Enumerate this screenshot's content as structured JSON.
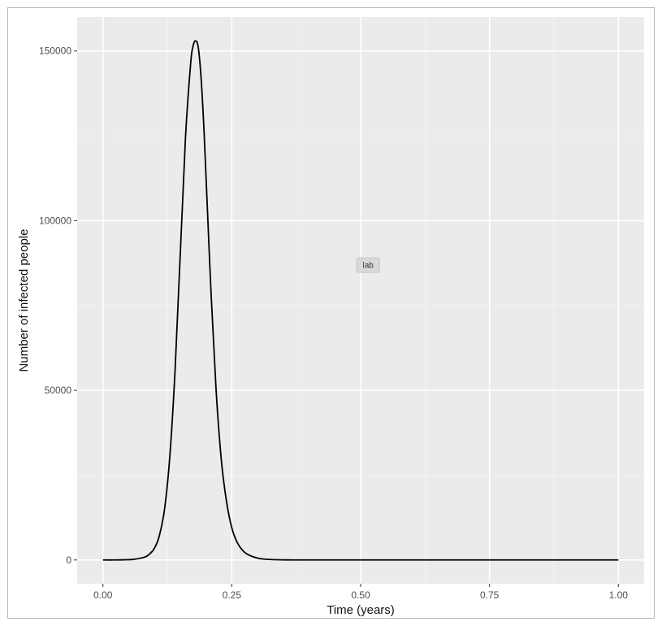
{
  "chart_data": {
    "type": "line",
    "title": "",
    "xlabel": "Time (years)",
    "ylabel": "Number of infected people",
    "xlim": [
      -0.05,
      1.05
    ],
    "ylim": [
      -7000,
      160000
    ],
    "x_ticks": [
      0,
      0.25,
      0.5,
      0.75,
      1.0
    ],
    "x_tick_labels": [
      "0.00",
      "0.25",
      "0.50",
      "0.75",
      "1.00"
    ],
    "y_ticks": [
      0,
      50000,
      100000,
      150000
    ],
    "y_tick_labels": [
      "0",
      "50000",
      "100000",
      "150000"
    ],
    "grid": true,
    "legend": "none",
    "line_color": "#000000",
    "panel_background": "#ebebeb",
    "annotation": {
      "text": "lab",
      "x": 0.5145,
      "y": 86900
    },
    "series": [
      {
        "x": [
          0.0,
          0.02,
          0.04,
          0.06,
          0.08,
          0.09,
          0.1,
          0.11,
          0.12,
          0.13,
          0.14,
          0.15,
          0.16,
          0.17,
          0.175,
          0.18,
          0.185,
          0.19,
          0.195,
          0.2,
          0.21,
          0.22,
          0.23,
          0.24,
          0.25,
          0.26,
          0.27,
          0.28,
          0.3,
          0.32,
          0.34,
          0.36,
          0.38,
          0.4,
          0.5,
          0.6,
          0.7,
          0.8,
          0.9,
          1.0
        ],
        "y": [
          0,
          0,
          50,
          200,
          800,
          1700,
          3500,
          7500,
          15500,
          31000,
          56000,
          90000,
          124000,
          146000,
          151500,
          153000,
          151000,
          143000,
          130000,
          113000,
          78000,
          49000,
          29000,
          17000,
          9500,
          5300,
          3000,
          1700,
          550,
          180,
          60,
          20,
          5,
          0,
          0,
          0,
          0,
          0,
          0,
          0
        ]
      }
    ]
  }
}
